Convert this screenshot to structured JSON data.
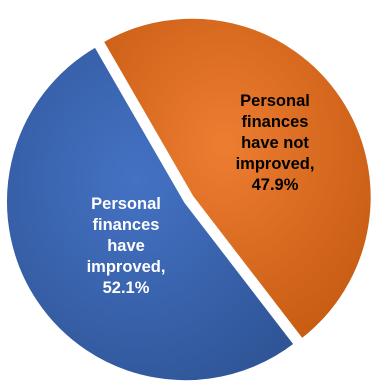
{
  "chart_data": {
    "type": "pie",
    "slices": [
      {
        "label_lines": [
          "Personal",
          "finances",
          "have not",
          "improved,",
          "47.9%"
        ],
        "category": "Personal finances have not improved",
        "value": 47.9,
        "color": "#ED7D31",
        "color_dark": "#C55A11",
        "text_color": "#000000"
      },
      {
        "label_lines": [
          "Personal",
          "finances",
          "have",
          "improved,",
          "52.1%"
        ],
        "category": "Personal finances have improved",
        "value": 52.1,
        "color": "#4472C4",
        "color_dark": "#2F5597",
        "text_color": "#FFFFFF"
      }
    ],
    "legend": "none"
  }
}
